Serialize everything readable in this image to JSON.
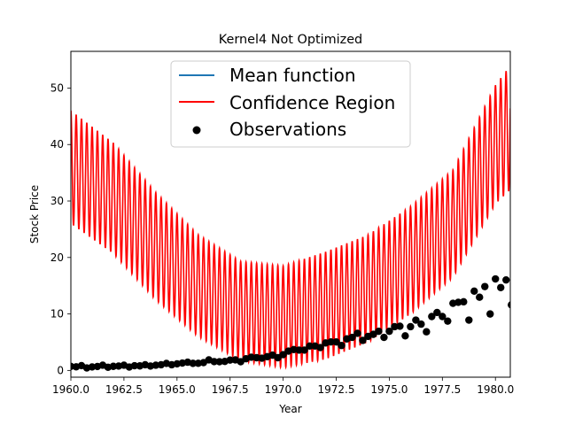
{
  "chart_data": {
    "type": "line",
    "title": "Kernel4 Not Optimized",
    "xlabel": "Year",
    "ylabel": "Stock Price",
    "xlim": [
      1960.0,
      1980.7
    ],
    "ylim": [
      -1.2,
      56.5
    ],
    "xticks": [
      1960.0,
      1962.5,
      1965.0,
      1967.5,
      1970.0,
      1972.5,
      1975.0,
      1977.5,
      1980.0
    ],
    "xtick_labels": [
      "1960.0",
      "1962.5",
      "1965.0",
      "1967.5",
      "1970.0",
      "1972.5",
      "1975.0",
      "1977.5",
      "1980.0"
    ],
    "yticks": [
      0,
      10,
      20,
      30,
      40,
      50
    ],
    "ytick_labels": [
      "0",
      "10",
      "20",
      "30",
      "40",
      "50"
    ],
    "legend_position": "top-right",
    "series": [
      {
        "name": "Mean function",
        "color": "#1f77b4",
        "kind": "line",
        "note_hidden": true
      },
      {
        "name": "Confidence Region",
        "color": "#ff0000",
        "kind": "oscillating-band",
        "center": {
          "x": [
            1960.0,
            1962.0,
            1964.0,
            1966.0,
            1968.0,
            1970.0,
            1972.0,
            1974.0,
            1976.0,
            1978.0,
            1980.0,
            1980.7
          ],
          "y": [
            36.0,
            30.5,
            22.0,
            15.0,
            10.5,
            9.5,
            11.5,
            14.5,
            19.5,
            26.0,
            40.0,
            43.0
          ]
        },
        "amplitude": {
          "x": [
            1960.0,
            1962.0,
            1964.0,
            1966.0,
            1968.0,
            1970.0,
            1972.0,
            1974.0,
            1976.0,
            1978.0,
            1980.0,
            1980.7
          ],
          "y": [
            10.0,
            9.8,
            9.5,
            9.0,
            8.8,
            9.0,
            9.5,
            9.5,
            9.5,
            9.5,
            10.5,
            11.0
          ]
        },
        "period_years": 0.25
      },
      {
        "name": "Observations",
        "color": "#000000",
        "kind": "scatter",
        "x": [
          1960.0,
          1960.25,
          1960.5,
          1960.75,
          1961.0,
          1961.25,
          1961.5,
          1961.75,
          1962.0,
          1962.25,
          1962.5,
          1962.75,
          1963.0,
          1963.25,
          1963.5,
          1963.75,
          1964.0,
          1964.25,
          1964.5,
          1964.75,
          1965.0,
          1965.25,
          1965.5,
          1965.75,
          1966.0,
          1966.25,
          1966.5,
          1966.75,
          1967.0,
          1967.25,
          1967.5,
          1967.75,
          1968.0,
          1968.25,
          1968.5,
          1968.75,
          1969.0,
          1969.25,
          1969.5,
          1969.75,
          1970.0,
          1970.25,
          1970.5,
          1970.75,
          1971.0,
          1971.25,
          1971.5,
          1971.75,
          1972.0,
          1972.25,
          1972.5,
          1972.75,
          1973.0,
          1973.25,
          1973.5,
          1973.75,
          1974.0,
          1974.25,
          1974.5,
          1974.75,
          1975.0,
          1975.25,
          1975.5,
          1975.75,
          1976.0,
          1976.25,
          1976.5,
          1976.75,
          1977.0,
          1977.25,
          1977.5,
          1977.75,
          1978.0,
          1978.25,
          1978.5,
          1978.75,
          1979.0,
          1979.25,
          1979.5,
          1979.75,
          1980.0,
          1980.25,
          1980.5,
          1980.75
        ],
        "y": [
          0.71,
          0.63,
          0.85,
          0.44,
          0.61,
          0.69,
          0.92,
          0.55,
          0.72,
          0.77,
          0.92,
          0.6,
          0.83,
          0.8,
          1.0,
          0.77,
          0.92,
          1.0,
          1.24,
          1.0,
          1.16,
          1.3,
          1.45,
          1.25,
          1.26,
          1.38,
          1.86,
          1.56,
          1.53,
          1.59,
          1.83,
          1.86,
          1.53,
          2.07,
          2.34,
          2.25,
          2.16,
          2.43,
          2.7,
          2.25,
          2.79,
          3.42,
          3.69,
          3.6,
          3.6,
          4.32,
          4.32,
          4.05,
          4.86,
          5.04,
          5.04,
          4.41,
          5.58,
          5.85,
          6.57,
          5.31,
          6.03,
          6.39,
          6.93,
          5.85,
          6.93,
          7.74,
          7.83,
          6.12,
          7.74,
          8.91,
          8.19,
          6.84,
          9.54,
          10.26,
          9.54,
          8.73,
          11.88,
          12.06,
          12.15,
          8.91,
          14.04,
          12.96,
          14.85,
          9.99,
          16.2,
          14.67,
          16.02,
          11.61
        ]
      }
    ]
  },
  "legend": {
    "items": [
      {
        "label": "Mean function",
        "color": "#1f77b4"
      },
      {
        "label": "Confidence Region",
        "color": "#ff0000"
      },
      {
        "label": "Observations",
        "color": "#000000"
      }
    ]
  }
}
